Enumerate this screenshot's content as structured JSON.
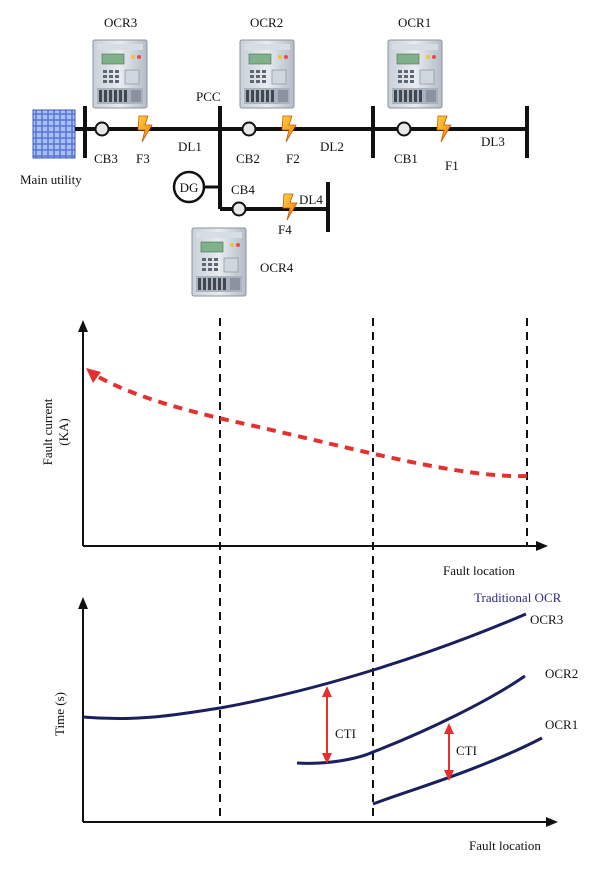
{
  "single_line": {
    "relays": {
      "ocr3": "OCR3",
      "ocr2": "OCR2",
      "ocr1": "OCR1",
      "ocr4": "OCR4"
    },
    "pcc": "PCC",
    "main_utility": "Main utility",
    "breakers": {
      "cb3": "CB3",
      "cb2": "CB2",
      "cb1": "CB1",
      "cb4": "CB4"
    },
    "faults": {
      "f3": "F3",
      "f2": "F2",
      "f1": "F1",
      "f4": "F4"
    },
    "lines": {
      "dl1": "DL1",
      "dl2": "DL2",
      "dl3": "DL3",
      "dl4": "DL4"
    },
    "dg": "DG"
  },
  "fault_current_plot": {
    "ylabel_line1": "Fault current",
    "ylabel_line2": "(KA)",
    "xlabel": "Fault location"
  },
  "time_plot": {
    "legend": "Traditional OCR",
    "ylabel": "Time (s)",
    "xlabel": "Fault location",
    "curve_labels": {
      "ocr3": "OCR3",
      "ocr2": "OCR2",
      "ocr1": "OCR1"
    },
    "cti_label": "CTI"
  },
  "colors": {
    "line": "#111111",
    "fault_current": "#e53030",
    "relay_curve": "#1c1f5e",
    "cti_arrow": "#e53030",
    "legend_text": "#2a2a8a"
  }
}
